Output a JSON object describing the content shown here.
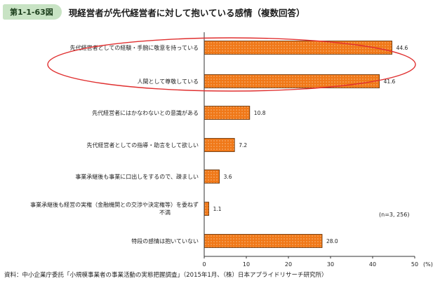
{
  "header": {
    "figure_number": "第1-1-63図",
    "title": "現経営者が先代経営者に対して抱いている感情（複数回答）"
  },
  "chart_data": {
    "type": "bar",
    "orientation": "horizontal",
    "categories": [
      "先代経営者としての経験・手腕に敬意を持っている",
      "人間として尊敬している",
      "先代経営者にはかなわないとの意識がある",
      "先代経営者としての指導・助言をして欲しい",
      "事業承継後も事業に口出しをするので、疎ましい",
      "事業承継後も経営の実権（金融機関との交渉や決定権等）を委ねず不満",
      "特段の感情は抱いていない"
    ],
    "values": [
      44.6,
      41.6,
      10.8,
      7.2,
      3.6,
      1.1,
      28.0
    ],
    "value_labels": [
      "44.6",
      "41.6",
      "10.8",
      "7.2",
      "3.6",
      "1.1",
      "28.0"
    ],
    "xlim": [
      0,
      50
    ],
    "xticks": [
      "0",
      "10",
      "20",
      "30",
      "40",
      "50"
    ],
    "unit_label": "(%)",
    "sample_note": "(n=3, 256)",
    "highlight": "top two bars circled in red",
    "colors": {
      "bar_fill": "#f07818",
      "bar_dots": "#fde2c4",
      "bar_stroke": "#5a2a00",
      "highlight": "#e03030"
    }
  },
  "footer": {
    "source": "資料：中小企業庁委託「小規模事業者の事業活動の実態把握調査」（2015年1月、（株）日本アプライドリサーチ研究所）"
  }
}
